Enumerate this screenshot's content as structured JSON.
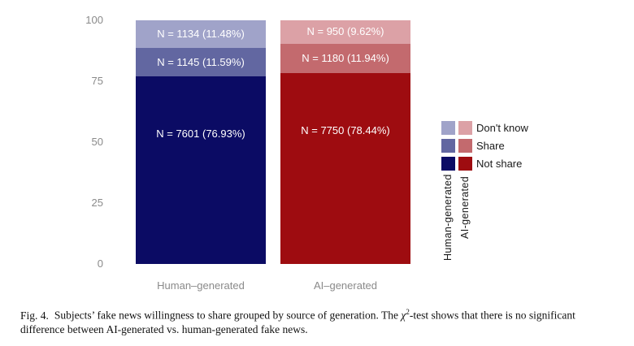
{
  "chart_data": {
    "type": "bar",
    "stacked": true,
    "orientation": "vertical",
    "categories": [
      "Human-generated",
      "AI-generated"
    ],
    "series": [
      {
        "name": "Don't know",
        "values": [
          11.48,
          9.62
        ],
        "counts": [
          1134,
          950
        ],
        "colors": [
          "#a0a3c9",
          "#dca1a6"
        ]
      },
      {
        "name": "Share",
        "values": [
          11.59,
          11.94
        ],
        "counts": [
          1145,
          1180
        ],
        "colors": [
          "#6267a1",
          "#c36a6e"
        ]
      },
      {
        "name": "Not share",
        "values": [
          76.93,
          78.44
        ],
        "counts": [
          7601,
          7750
        ],
        "colors": [
          "#0b0b64",
          "#9e0c10"
        ]
      }
    ],
    "title": "",
    "xlabel": "",
    "ylabel": "",
    "ylim": [
      0,
      100
    ],
    "yticks": [
      100,
      75,
      50,
      25,
      0
    ],
    "grid": false,
    "legend_position": "right"
  },
  "y_axis": {
    "ticks": [
      {
        "label": "100"
      },
      {
        "label": "75"
      },
      {
        "label": "50"
      },
      {
        "label": "25"
      },
      {
        "label": "0"
      }
    ]
  },
  "bars": [
    {
      "axis_label": "Human–generated",
      "segments": [
        {
          "name": "Don't know",
          "label": "N = 1134 (11.48%)"
        },
        {
          "name": "Share",
          "label": "N = 1145 (11.59%)"
        },
        {
          "name": "Not share",
          "label": "N = 7601 (76.93%)"
        }
      ]
    },
    {
      "axis_label": "AI–generated",
      "segments": [
        {
          "name": "Don't know",
          "label": "N = 950 (9.62%)"
        },
        {
          "name": "Share",
          "label": "N = 1180 (11.94%)"
        },
        {
          "name": "Not share",
          "label": "N = 7750 (78.44%)"
        }
      ]
    }
  ],
  "legend": {
    "items": [
      {
        "label": "Don't know"
      },
      {
        "label": "Share"
      },
      {
        "label": "Not share"
      }
    ],
    "column_labels": [
      "Human-generated",
      "AI-generated"
    ]
  },
  "caption": {
    "fig_label": "Fig. 4.",
    "line1_pre": "Subjects’ fake news willingness to share grouped by source of generation. The ",
    "chi": "χ",
    "chi_sup": "2",
    "line1_post": "-test shows that there is no significant",
    "line2": "difference between AI-generated vs. human-generated fake news."
  }
}
